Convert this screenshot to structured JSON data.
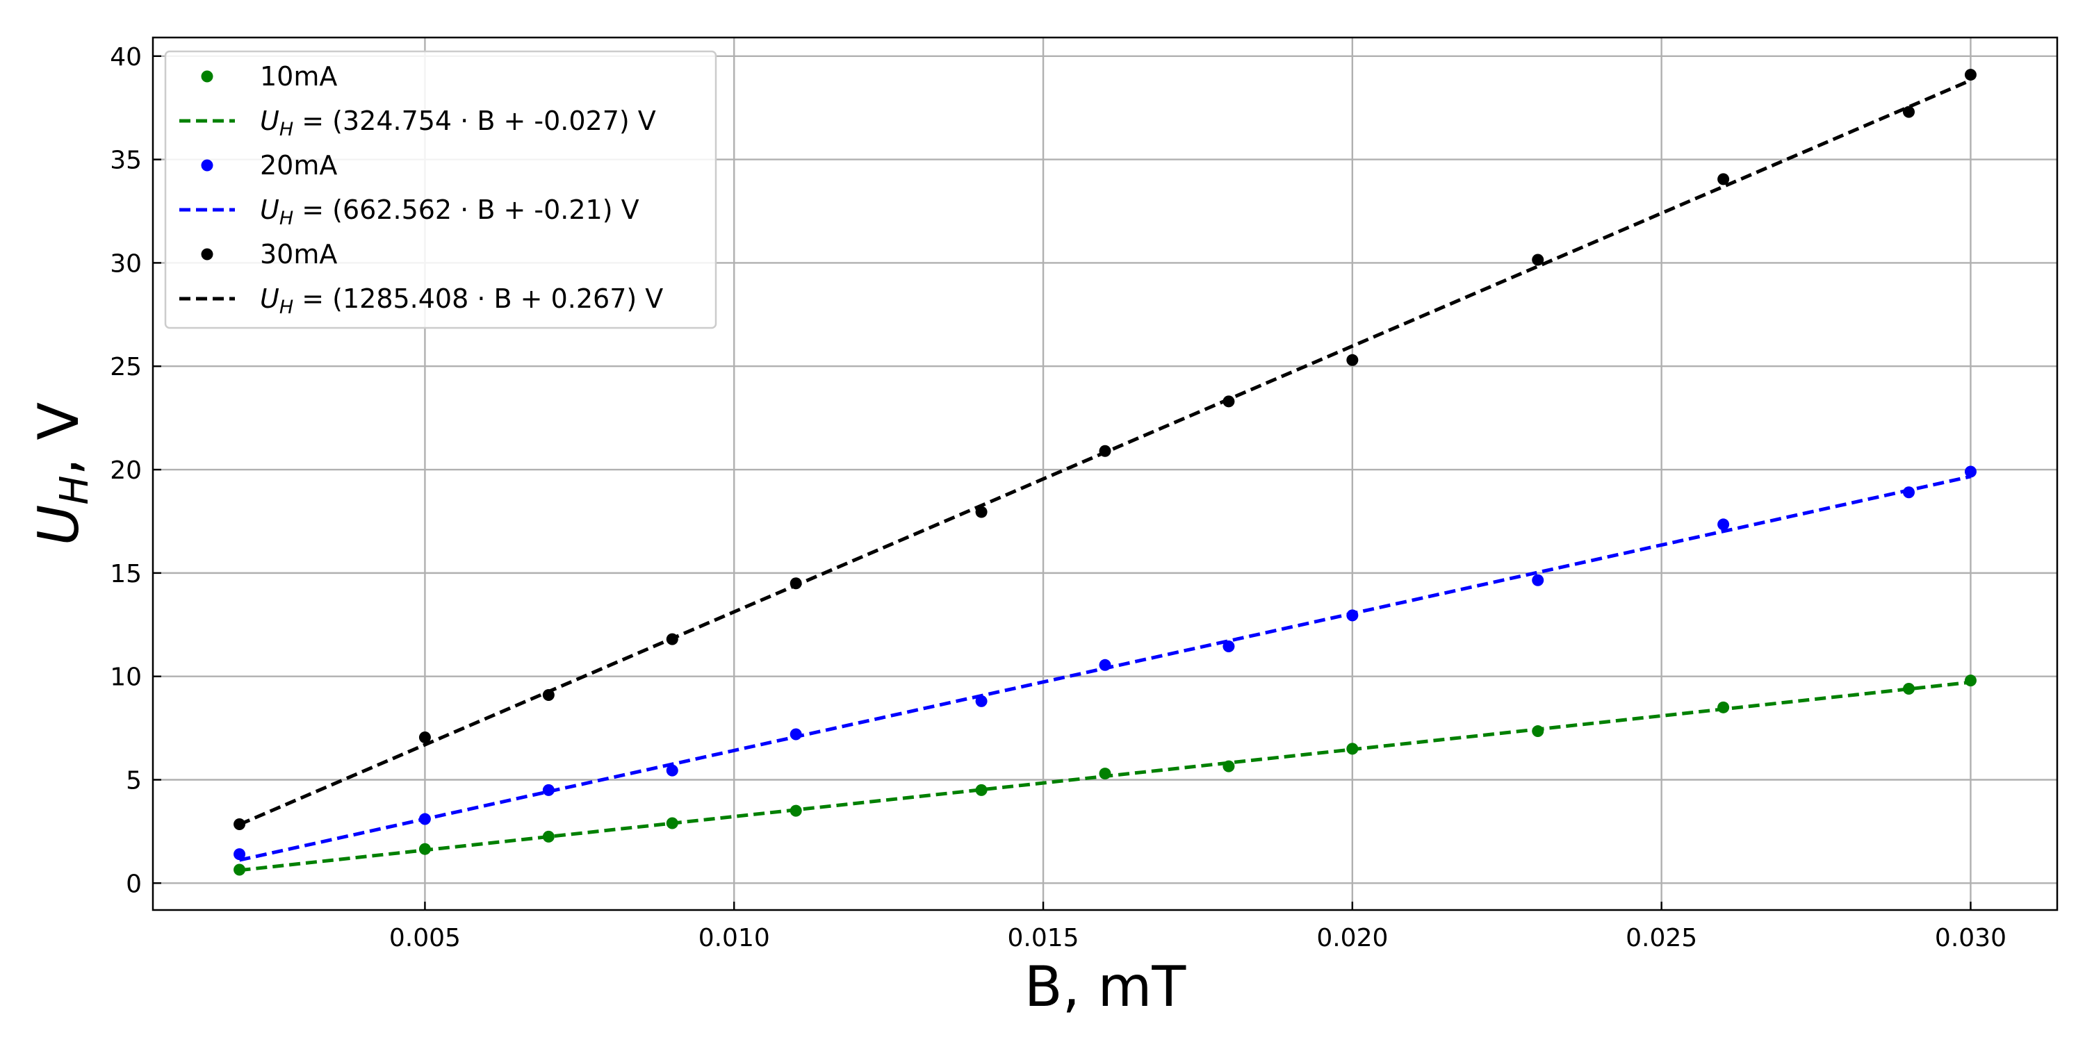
{
  "chart_data": {
    "type": "scatter",
    "xlabel": "B, mT",
    "ylabel_main": "U",
    "ylabel_sub": "H",
    "ylabel_rest": ", V",
    "xlim": [
      0.0006,
      0.0314
    ],
    "ylim": [
      -1.3,
      40.9
    ],
    "xticks": [
      0.005,
      0.01,
      0.015,
      0.02,
      0.025,
      0.03
    ],
    "xtick_labels": [
      "0.005",
      "0.010",
      "0.015",
      "0.020",
      "0.025",
      "0.030"
    ],
    "yticks": [
      0,
      5,
      10,
      15,
      20,
      25,
      30,
      35,
      40
    ],
    "ytick_labels": [
      "0",
      "5",
      "10",
      "15",
      "20",
      "25",
      "30",
      "35",
      "40"
    ],
    "grid": true,
    "legend_position": "top-left",
    "x": [
      0.002,
      0.005,
      0.007,
      0.009,
      0.011,
      0.014,
      0.016,
      0.018,
      0.02,
      0.023,
      0.026,
      0.029,
      0.03
    ],
    "series": [
      {
        "name": "10mA",
        "color": "#008000",
        "values": [
          0.65,
          1.65,
          2.25,
          2.9,
          3.5,
          4.5,
          5.3,
          5.65,
          6.5,
          7.35,
          8.5,
          9.4,
          9.8
        ],
        "fit": {
          "slope": 324.754,
          "intercept": -0.027,
          "label_main": "U",
          "label_sub": "H",
          "label_rest": " = (324.754 · B + -0.027) V"
        }
      },
      {
        "name": "20mA",
        "color": "#0000ff",
        "values": [
          1.4,
          3.1,
          4.5,
          5.45,
          7.2,
          8.8,
          10.55,
          11.45,
          12.95,
          14.65,
          17.35,
          18.9,
          19.9
        ],
        "fit": {
          "slope": 662.562,
          "intercept": -0.21,
          "label_main": "U",
          "label_sub": "H",
          "label_rest": " = (662.562 · B + -0.21) V"
        }
      },
      {
        "name": "30mA",
        "color": "#000000",
        "values": [
          2.85,
          7.05,
          9.1,
          11.8,
          14.5,
          17.95,
          20.9,
          23.3,
          25.3,
          30.15,
          34.05,
          37.3,
          39.1
        ],
        "fit": {
          "slope": 1285.408,
          "intercept": 0.267,
          "label_main": "U",
          "label_sub": "H",
          "label_rest": " = (1285.408 · B + 0.267) V"
        }
      }
    ]
  }
}
